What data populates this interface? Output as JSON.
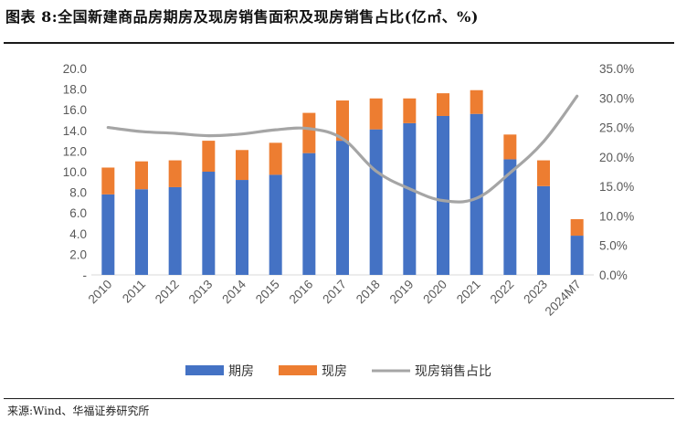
{
  "header": {
    "title": "图表 8:全国新建商品房期房及现房销售面积及现房销售占比(亿㎡、%)"
  },
  "footer": {
    "source": "来源:Wind、华福证券研究所"
  },
  "chart_data": {
    "type": "bar",
    "stacked": true,
    "title": "全国新建商品房期房及现房销售面积及现房销售占比(亿㎡、%)",
    "categories": [
      "2010",
      "2011",
      "2012",
      "2013",
      "2014",
      "2015",
      "2016",
      "2017",
      "2018",
      "2019",
      "2020",
      "2021",
      "2022",
      "2023",
      "2024M7"
    ],
    "series": [
      {
        "name": "期房",
        "type": "bar",
        "axis": "left",
        "color": "#4472C4",
        "values": [
          7.8,
          8.3,
          8.5,
          10.0,
          9.2,
          9.7,
          11.8,
          13.0,
          14.1,
          14.7,
          15.4,
          15.6,
          11.2,
          8.6,
          3.8
        ]
      },
      {
        "name": "现房",
        "type": "bar",
        "axis": "left",
        "color": "#ED7D31",
        "values": [
          2.6,
          2.7,
          2.6,
          3.0,
          2.9,
          3.1,
          3.9,
          3.9,
          3.0,
          2.4,
          2.2,
          2.3,
          2.4,
          2.5,
          1.6
        ]
      },
      {
        "name": "现房销售占比",
        "type": "line",
        "axis": "right",
        "color": "#A5A5A5",
        "values": [
          25.0,
          24.3,
          24.0,
          23.6,
          23.9,
          24.6,
          24.8,
          23.1,
          17.6,
          14.6,
          12.6,
          13.0,
          17.3,
          22.6,
          30.3
        ]
      }
    ],
    "y_left": {
      "min": 0,
      "max": 20,
      "step": 2,
      "tick_labels": [
        "-",
        "2.0",
        "4.0",
        "6.0",
        "8.0",
        "10.0",
        "12.0",
        "14.0",
        "16.0",
        "18.0",
        "20.0"
      ]
    },
    "y_right": {
      "min": 0,
      "max": 35,
      "step": 5,
      "tick_labels": [
        "0.0%",
        "5.0%",
        "10.0%",
        "15.0%",
        "20.0%",
        "25.0%",
        "30.0%",
        "35.0%"
      ]
    },
    "xlabel": "",
    "ylabel": "",
    "grid": false,
    "legend_position": "bottom"
  }
}
